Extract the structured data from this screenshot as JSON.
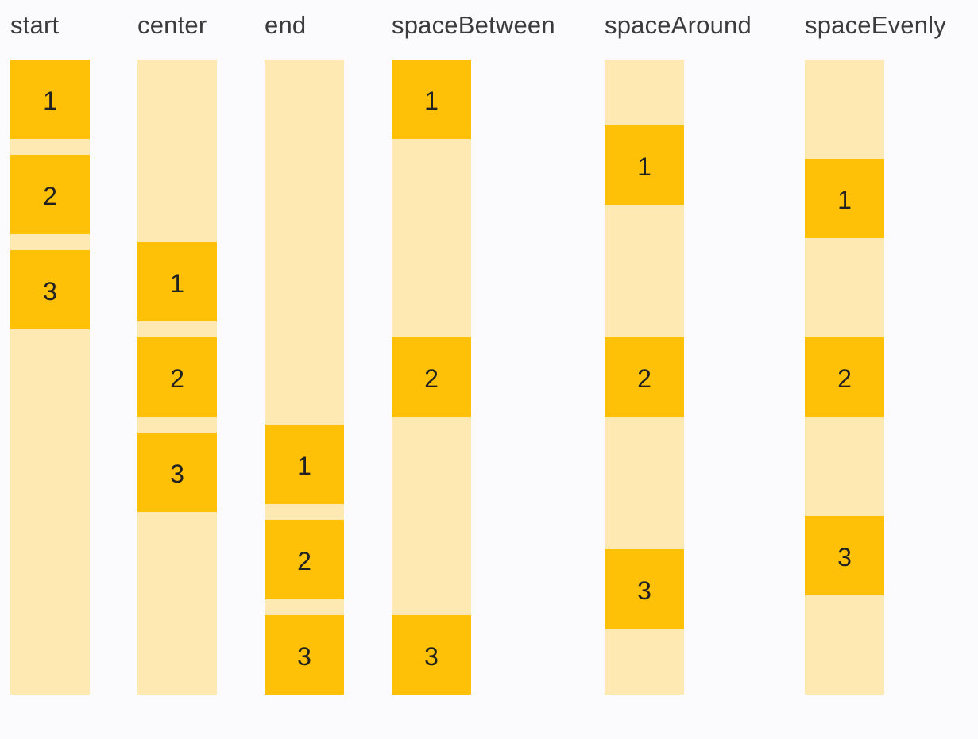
{
  "demo": {
    "columns": [
      {
        "label": "start",
        "items": [
          "1",
          "2",
          "3"
        ]
      },
      {
        "label": "center",
        "items": [
          "1",
          "2",
          "3"
        ]
      },
      {
        "label": "end",
        "items": [
          "1",
          "2",
          "3"
        ]
      },
      {
        "label": "spaceBetween",
        "items": [
          "1",
          "2",
          "3"
        ]
      },
      {
        "label": "spaceAround",
        "items": [
          "1",
          "2",
          "3"
        ]
      },
      {
        "label": "spaceEvenly",
        "items": [
          "1",
          "2",
          "3"
        ]
      }
    ],
    "colors": {
      "box": "#ffc107",
      "track": "#ffe9b3",
      "label_text": "#3b3b3b",
      "number_text": "#212121",
      "page_background": "#fbfbfd"
    }
  }
}
